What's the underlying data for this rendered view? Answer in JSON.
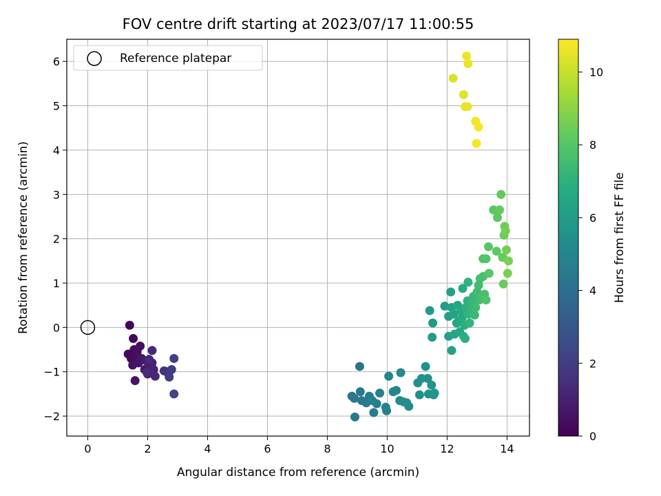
{
  "chart_data": {
    "type": "scatter",
    "title": "FOV centre drift starting at 2023/07/17 11:00:55",
    "xlabel": "Angular distance from reference (arcmin)",
    "ylabel": "Rotation from reference (arcmin)",
    "xlim": [
      -0.7,
      14.75
    ],
    "ylim": [
      -2.45,
      6.5
    ],
    "x_ticks": [
      0,
      2,
      4,
      6,
      8,
      10,
      12,
      14
    ],
    "y_ticks": [
      -2,
      -1,
      0,
      1,
      2,
      3,
      4,
      5,
      6
    ],
    "grid": true,
    "legend": {
      "position": "top-left",
      "entries": [
        "Reference platepar"
      ]
    },
    "reference_point": {
      "x": 0,
      "y": 0,
      "marker": "hollow-circle"
    },
    "colorbar": {
      "label": "Hours from first FF file",
      "range": [
        0,
        10.9
      ],
      "ticks": [
        0,
        2,
        4,
        6,
        8,
        10
      ],
      "colormap": "viridis"
    },
    "points": [
      {
        "x": 1.4,
        "y": 0.05,
        "t": 0.15
      },
      {
        "x": 1.52,
        "y": -0.25,
        "t": 0.2
      },
      {
        "x": 1.35,
        "y": -0.6,
        "t": 0.25
      },
      {
        "x": 1.45,
        "y": -0.7,
        "t": 0.3
      },
      {
        "x": 1.55,
        "y": -0.5,
        "t": 0.35
      },
      {
        "x": 1.6,
        "y": -0.65,
        "t": 0.4
      },
      {
        "x": 1.65,
        "y": -0.55,
        "t": 0.45
      },
      {
        "x": 1.75,
        "y": -0.42,
        "t": 0.5
      },
      {
        "x": 1.5,
        "y": -0.85,
        "t": 0.55
      },
      {
        "x": 1.58,
        "y": -1.2,
        "t": 0.6
      },
      {
        "x": 1.7,
        "y": -0.8,
        "t": 0.65
      },
      {
        "x": 1.8,
        "y": -0.7,
        "t": 0.7
      },
      {
        "x": 1.9,
        "y": -0.95,
        "t": 0.8
      },
      {
        "x": 1.95,
        "y": -0.75,
        "t": 0.85
      },
      {
        "x": 2.05,
        "y": -0.85,
        "t": 0.9
      },
      {
        "x": 2.0,
        "y": -1.05,
        "t": 0.95
      },
      {
        "x": 2.1,
        "y": -1.0,
        "t": 1.0
      },
      {
        "x": 2.15,
        "y": -0.8,
        "t": 1.05
      },
      {
        "x": 2.2,
        "y": -0.95,
        "t": 1.1
      },
      {
        "x": 2.25,
        "y": -1.1,
        "t": 1.2
      },
      {
        "x": 2.15,
        "y": -0.52,
        "t": 1.25
      },
      {
        "x": 2.05,
        "y": -0.72,
        "t": 1.3
      },
      {
        "x": 1.98,
        "y": -1.02,
        "t": 1.35
      },
      {
        "x": 2.55,
        "y": -0.98,
        "t": 1.6
      },
      {
        "x": 2.65,
        "y": -1.0,
        "t": 1.7
      },
      {
        "x": 2.7,
        "y": -1.05,
        "t": 1.8
      },
      {
        "x": 2.72,
        "y": -1.12,
        "t": 1.9
      },
      {
        "x": 2.8,
        "y": -0.95,
        "t": 2.0
      },
      {
        "x": 2.88,
        "y": -0.7,
        "t": 2.1
      },
      {
        "x": 2.88,
        "y": -1.5,
        "t": 2.2
      },
      {
        "x": 9.08,
        "y": -0.88,
        "t": 4.2
      },
      {
        "x": 8.82,
        "y": -1.55,
        "t": 4.3
      },
      {
        "x": 8.9,
        "y": -1.6,
        "t": 4.35
      },
      {
        "x": 8.92,
        "y": -2.02,
        "t": 4.4
      },
      {
        "x": 9.1,
        "y": -1.45,
        "t": 4.45
      },
      {
        "x": 9.15,
        "y": -1.65,
        "t": 4.5
      },
      {
        "x": 9.3,
        "y": -1.7,
        "t": 4.55
      },
      {
        "x": 9.4,
        "y": -1.55,
        "t": 4.6
      },
      {
        "x": 9.5,
        "y": -1.65,
        "t": 4.65
      },
      {
        "x": 9.55,
        "y": -1.92,
        "t": 4.7
      },
      {
        "x": 9.65,
        "y": -1.72,
        "t": 4.75
      },
      {
        "x": 9.75,
        "y": -1.48,
        "t": 4.8
      },
      {
        "x": 9.95,
        "y": -1.8,
        "t": 4.85
      },
      {
        "x": 9.98,
        "y": -1.88,
        "t": 4.9
      },
      {
        "x": 10.05,
        "y": -1.1,
        "t": 4.95
      },
      {
        "x": 10.2,
        "y": -1.45,
        "t": 5.0
      },
      {
        "x": 10.3,
        "y": -1.42,
        "t": 5.05
      },
      {
        "x": 10.45,
        "y": -1.02,
        "t": 5.1
      },
      {
        "x": 10.42,
        "y": -1.65,
        "t": 5.15
      },
      {
        "x": 10.55,
        "y": -1.68,
        "t": 5.2
      },
      {
        "x": 10.65,
        "y": -1.7,
        "t": 5.25
      },
      {
        "x": 10.72,
        "y": -1.78,
        "t": 5.3
      },
      {
        "x": 11.02,
        "y": -1.25,
        "t": 5.35
      },
      {
        "x": 11.08,
        "y": -1.52,
        "t": 5.4
      },
      {
        "x": 11.15,
        "y": -1.15,
        "t": 5.45
      },
      {
        "x": 11.28,
        "y": -0.88,
        "t": 5.5
      },
      {
        "x": 11.35,
        "y": -1.15,
        "t": 5.55
      },
      {
        "x": 11.38,
        "y": -1.5,
        "t": 5.6
      },
      {
        "x": 11.48,
        "y": -1.3,
        "t": 5.65
      },
      {
        "x": 11.55,
        "y": -1.52,
        "t": 5.7
      },
      {
        "x": 11.58,
        "y": -1.48,
        "t": 5.75
      },
      {
        "x": 11.42,
        "y": 0.38,
        "t": 5.9
      },
      {
        "x": 11.52,
        "y": 0.1,
        "t": 5.95
      },
      {
        "x": 11.5,
        "y": -0.22,
        "t": 6.0
      },
      {
        "x": 11.92,
        "y": 0.48,
        "t": 6.05
      },
      {
        "x": 12.05,
        "y": 0.25,
        "t": 6.1
      },
      {
        "x": 12.05,
        "y": -0.2,
        "t": 6.15
      },
      {
        "x": 12.12,
        "y": 0.8,
        "t": 6.2
      },
      {
        "x": 12.15,
        "y": 0.45,
        "t": 6.25
      },
      {
        "x": 12.15,
        "y": -0.52,
        "t": 6.3
      },
      {
        "x": 12.22,
        "y": 0.3,
        "t": 6.35
      },
      {
        "x": 12.25,
        "y": -0.15,
        "t": 6.4
      },
      {
        "x": 12.32,
        "y": 0.1,
        "t": 6.45
      },
      {
        "x": 12.35,
        "y": 0.5,
        "t": 6.5
      },
      {
        "x": 12.4,
        "y": 0.15,
        "t": 6.55
      },
      {
        "x": 12.42,
        "y": -0.1,
        "t": 6.6
      },
      {
        "x": 12.45,
        "y": 0.38,
        "t": 6.65
      },
      {
        "x": 12.5,
        "y": 0.22,
        "t": 6.7
      },
      {
        "x": 12.52,
        "y": 0.88,
        "t": 6.75
      },
      {
        "x": 12.55,
        "y": -0.2,
        "t": 6.8
      },
      {
        "x": 12.58,
        "y": 0.05,
        "t": 6.85
      },
      {
        "x": 12.6,
        "y": -0.25,
        "t": 6.9
      },
      {
        "x": 12.62,
        "y": 0.45,
        "t": 6.95
      },
      {
        "x": 12.68,
        "y": 0.6,
        "t": 7.0
      },
      {
        "x": 12.7,
        "y": 1.02,
        "t": 7.05
      },
      {
        "x": 12.72,
        "y": 0.3,
        "t": 7.1
      },
      {
        "x": 12.75,
        "y": 0.1,
        "t": 7.15
      },
      {
        "x": 12.8,
        "y": 0.4,
        "t": 7.2
      },
      {
        "x": 12.85,
        "y": 0.55,
        "t": 7.25
      },
      {
        "x": 12.88,
        "y": 0.7,
        "t": 7.3
      },
      {
        "x": 12.92,
        "y": 0.28,
        "t": 7.35
      },
      {
        "x": 12.95,
        "y": 0.45,
        "t": 7.4
      },
      {
        "x": 13.0,
        "y": 0.8,
        "t": 7.45
      },
      {
        "x": 13.05,
        "y": 0.95,
        "t": 7.5
      },
      {
        "x": 13.08,
        "y": 0.62,
        "t": 7.55
      },
      {
        "x": 13.1,
        "y": 1.1,
        "t": 7.6
      },
      {
        "x": 13.15,
        "y": 0.7,
        "t": 7.65
      },
      {
        "x": 13.2,
        "y": 1.15,
        "t": 7.7
      },
      {
        "x": 13.25,
        "y": 0.75,
        "t": 7.75
      },
      {
        "x": 13.3,
        "y": 0.62,
        "t": 7.8
      },
      {
        "x": 13.2,
        "y": 1.55,
        "t": 7.9
      },
      {
        "x": 13.3,
        "y": 1.55,
        "t": 7.95
      },
      {
        "x": 13.38,
        "y": 1.82,
        "t": 8.0
      },
      {
        "x": 13.4,
        "y": 1.22,
        "t": 8.05
      },
      {
        "x": 13.55,
        "y": 2.65,
        "t": 8.1
      },
      {
        "x": 13.65,
        "y": 1.72,
        "t": 8.15
      },
      {
        "x": 13.68,
        "y": 2.48,
        "t": 8.2
      },
      {
        "x": 13.75,
        "y": 2.65,
        "t": 8.25
      },
      {
        "x": 13.8,
        "y": 3.0,
        "t": 8.3
      },
      {
        "x": 13.85,
        "y": 1.58,
        "t": 8.35
      },
      {
        "x": 13.88,
        "y": 0.98,
        "t": 8.4
      },
      {
        "x": 13.9,
        "y": 2.08,
        "t": 8.45
      },
      {
        "x": 13.92,
        "y": 2.28,
        "t": 8.5
      },
      {
        "x": 13.95,
        "y": 2.18,
        "t": 8.55
      },
      {
        "x": 13.98,
        "y": 1.75,
        "t": 8.6
      },
      {
        "x": 14.02,
        "y": 1.22,
        "t": 8.65
      },
      {
        "x": 14.05,
        "y": 1.5,
        "t": 8.7
      },
      {
        "x": 12.2,
        "y": 5.62,
        "t": 10.3
      },
      {
        "x": 12.55,
        "y": 5.25,
        "t": 10.4
      },
      {
        "x": 12.6,
        "y": 4.98,
        "t": 10.5
      },
      {
        "x": 12.68,
        "y": 4.98,
        "t": 10.55
      },
      {
        "x": 12.65,
        "y": 6.12,
        "t": 10.6
      },
      {
        "x": 12.7,
        "y": 5.95,
        "t": 10.65
      },
      {
        "x": 12.95,
        "y": 4.65,
        "t": 10.7
      },
      {
        "x": 13.05,
        "y": 4.52,
        "t": 10.75
      },
      {
        "x": 12.98,
        "y": 4.15,
        "t": 10.8
      }
    ]
  }
}
